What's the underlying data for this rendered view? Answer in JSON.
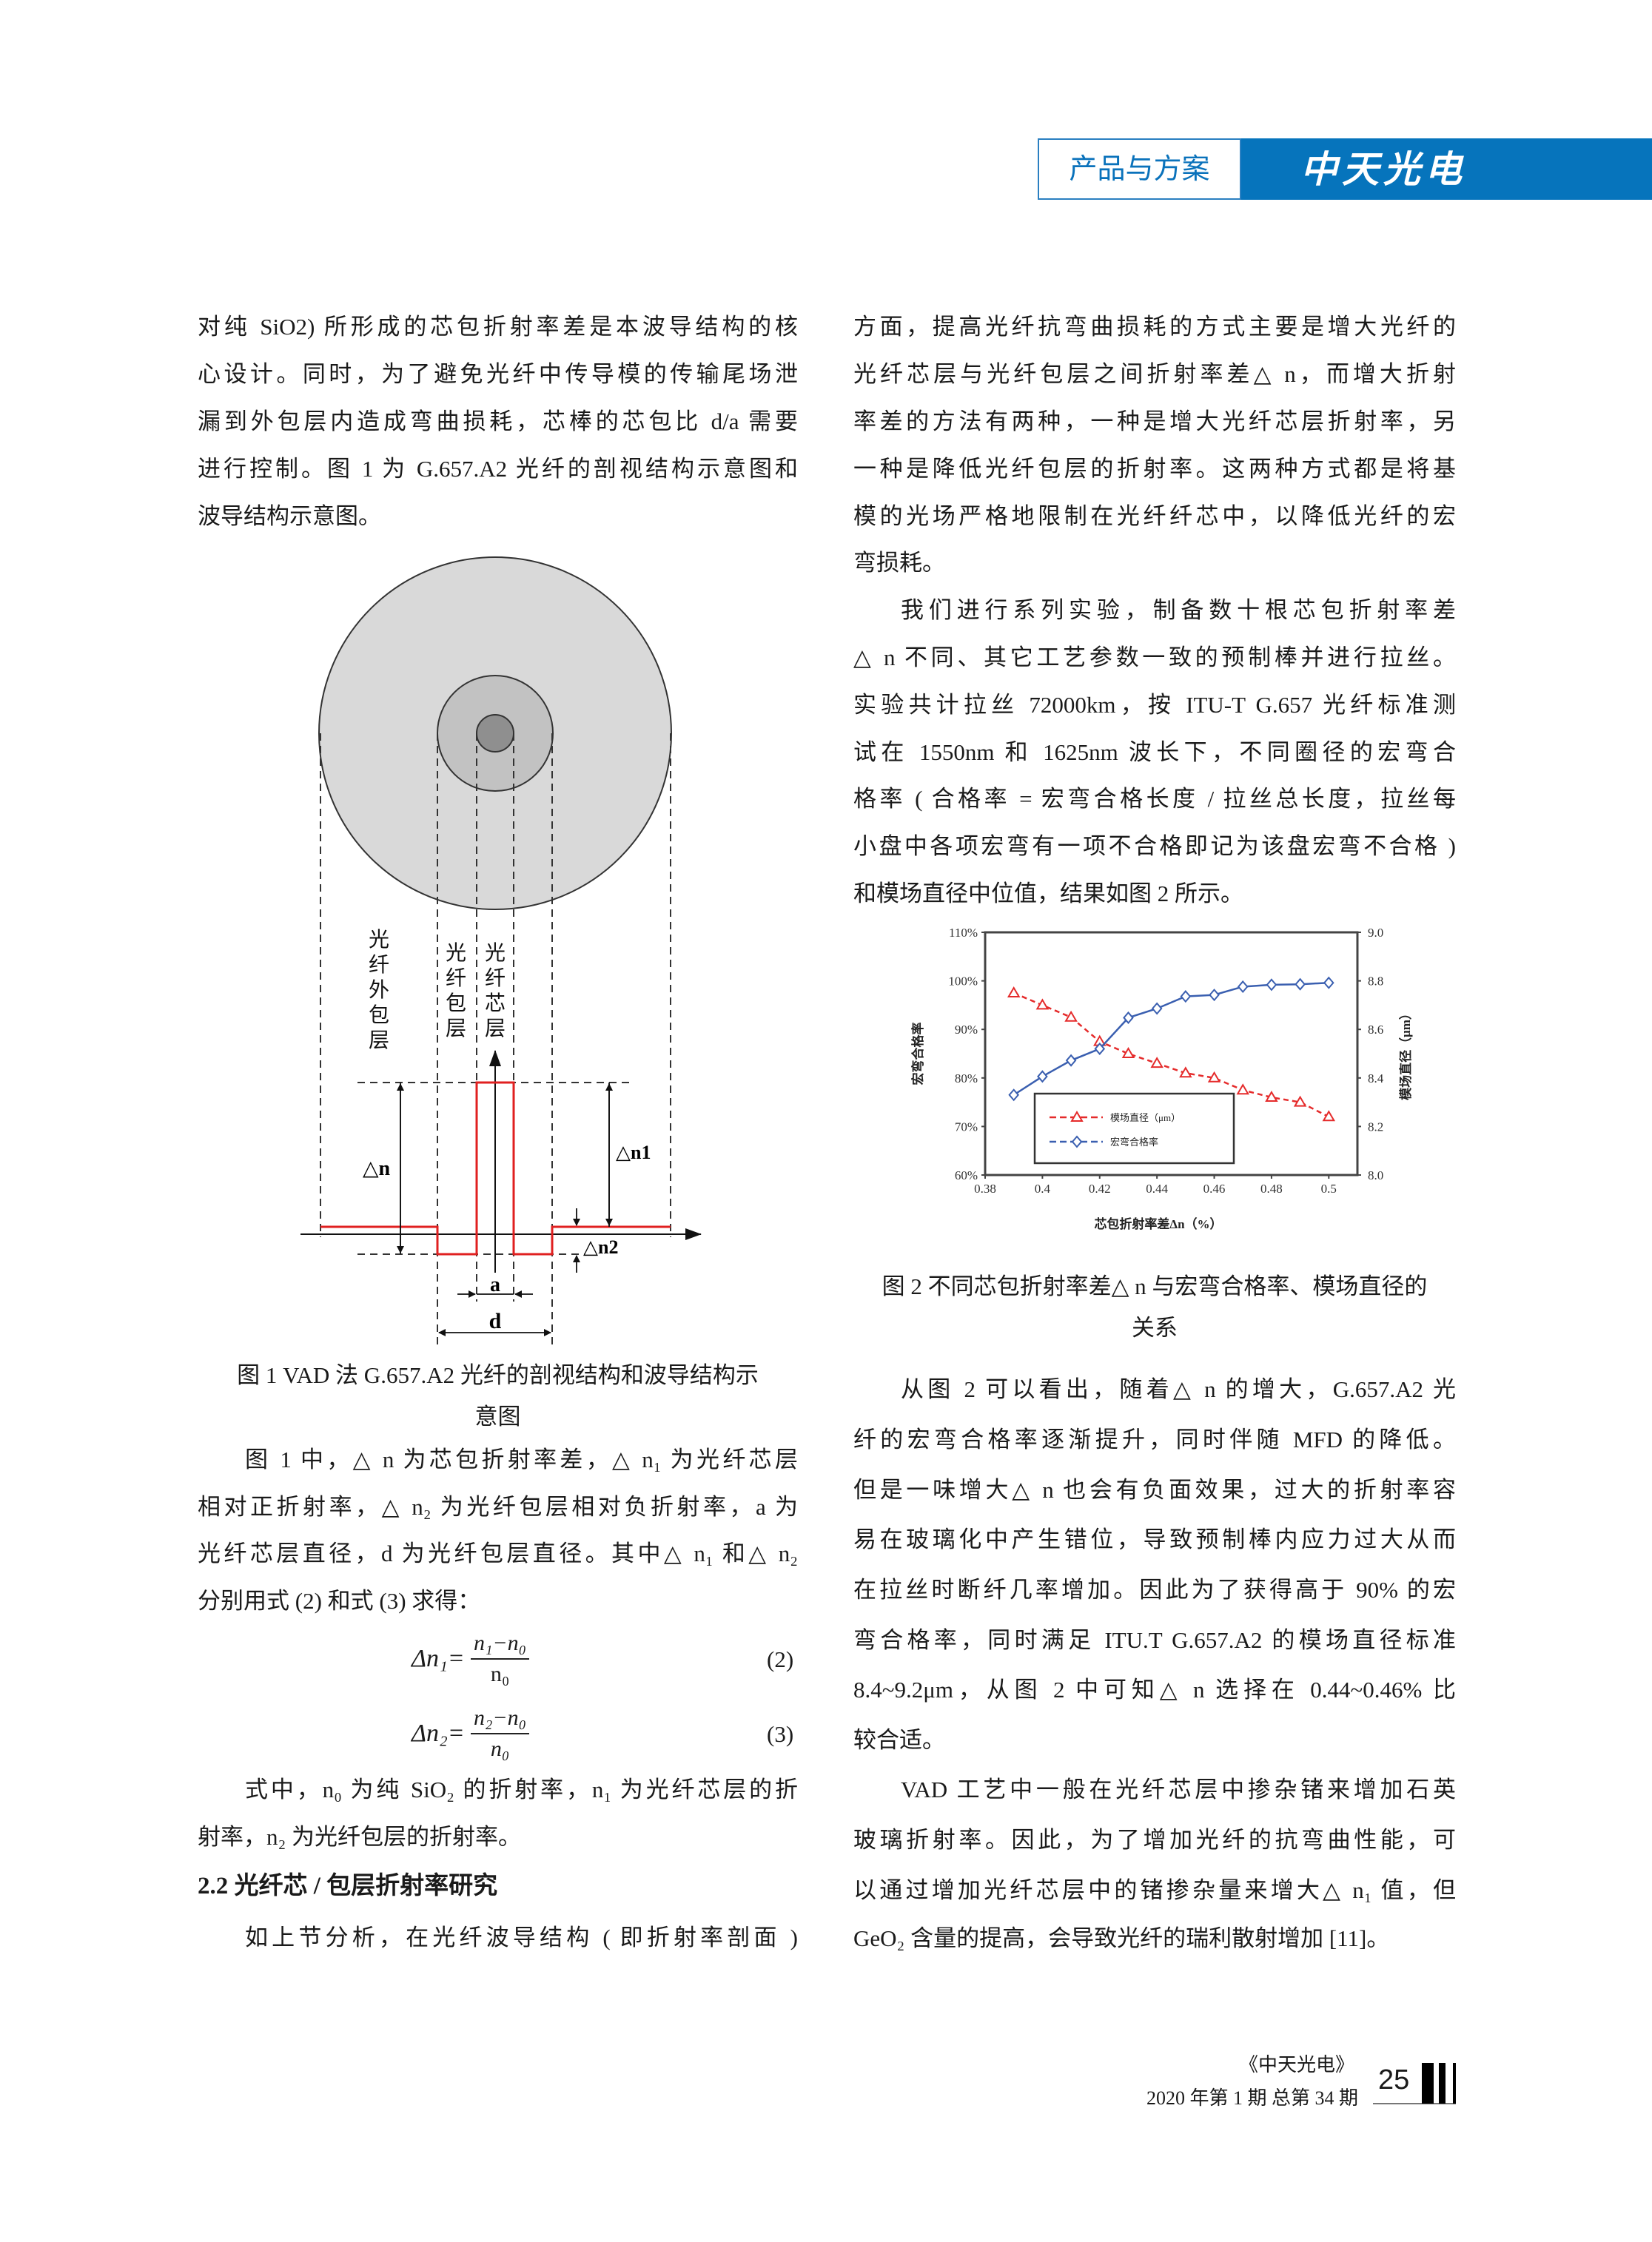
{
  "header": {
    "section_label": "产品与方案",
    "brand": "中天光电",
    "brand_color": "#0674bc"
  },
  "left_column": {
    "p1": [
      "对纯 SiO2) 所形成的芯包折射率差是本波导结构的核",
      "心设计。同时，为了避免光纤中传导模的传输尾场泄",
      "漏到外包层内造成弯曲损耗，芯棒的芯包比 d/a 需要",
      "进行控制。图 1 为 G.657.A2 光纤的剖视结构示意图和",
      "波导结构示意图。"
    ],
    "figure1": {
      "labels": {
        "outer_cladding": "光纤外包层",
        "cladding": "光纤包层",
        "core": "光纤芯层",
        "delta_n": "△n",
        "delta_n1": "△n1",
        "delta_n2": "△n2",
        "a": "a",
        "d": "d"
      },
      "caption": [
        "图 1 VAD 法 G.657.A2 光纤的剖视结构和波导结构示",
        "意图"
      ]
    },
    "p2": [
      "图 1 中，△ n 为芯包折射率差，△ n₁ 为光纤芯层",
      "相对正折射率，△ n₂ 为光纤包层相对负折射率，a 为",
      "光纤芯层直径，d 为光纤包层直径。其中△ n₁ 和△ n₂",
      "分别用式 (2) 和式 (3) 求得："
    ],
    "formulas": [
      {
        "lhs": "Δn₁=",
        "numerator": "n₁−n₀",
        "denominator": "n₀",
        "number": "(2)"
      },
      {
        "lhs": "Δn₂=",
        "numerator": "n₂−n₀",
        "denominator": "n₀",
        "number": "(3)"
      }
    ],
    "p3": [
      "式中，n₀ 为纯 SiO₂ 的折射率，n₁ 为光纤芯层的折",
      "射率，n₂ 为光纤包层的折射率。"
    ],
    "heading": "2.2 光纤芯 / 包层折射率研究",
    "p4": [
      "如上节分析，在光纤波导结构 ( 即折射率剖面 )"
    ]
  },
  "right_column": {
    "p1": [
      "方面，提高光纤抗弯曲损耗的方式主要是增大光纤的",
      "光纤芯层与光纤包层之间折射率差△ n，而增大折射",
      "率差的方法有两种，一种是增大光纤芯层折射率，另",
      "一种是降低光纤包层的折射率。这两种方式都是将基",
      "模的光场严格地限制在光纤纤芯中，以降低光纤的宏",
      "弯损耗。"
    ],
    "p2": [
      "我们进行系列实验，制备数十根芯包折射率差",
      "△ n 不同、其它工艺参数一致的预制棒并进行拉丝。",
      "实验共计拉丝 72000km，按 ITU-T G.657 光纤标准测",
      "试在 1550nm 和 1625nm 波长下，不同圈径的宏弯合",
      "格率 ( 合格率 = 宏弯合格长度 / 拉丝总长度，拉丝每",
      "小盘中各项宏弯有一项不合格即记为该盘宏弯不合格 )",
      "和模场直径中位值，结果如图 2 所示。"
    ],
    "figure2_caption": [
      "图 2 不同芯包折射率差△ n 与宏弯合格率、模场直径的",
      "关系"
    ],
    "p3": [
      "从图 2 可以看出，随着△ n 的增大，G.657.A2 光",
      "纤的宏弯合格率逐渐提升，同时伴随 MFD 的降低。",
      "但是一味增大△ n 也会有负面效果，过大的折射率容",
      "易在玻璃化中产生错位，导致预制棒内应力过大从而",
      "在拉丝时断纤几率增加。因此为了获得高于 90% 的宏",
      "弯合格率，同时满足 ITU.T G.657.A2 的模场直径标准",
      "8.4~9.2μm，从图 2 中可知△ n 选择在 0.44~0.46% 比",
      "较合适。"
    ],
    "p4": [
      "VAD 工艺中一般在光纤芯层中掺杂锗来增加石英",
      "玻璃折射率。因此，为了增加光纤的抗弯曲性能，可",
      "以通过增加光纤芯层中的锗掺杂量来增大△ n₁ 值，但",
      "GeO₂ 含量的提高，会导致光纤的瑞利散射增加 [11]。"
    ]
  },
  "chart_data": {
    "type": "line",
    "xlabel": "芯包折射率差Δn（%）",
    "ylabel_left": "宏弯合格率",
    "ylabel_right": "模场直径（μm）",
    "x": [
      0.39,
      0.4,
      0.41,
      0.42,
      0.43,
      0.44,
      0.45,
      0.46,
      0.47,
      0.48,
      0.49,
      0.5
    ],
    "xlim": [
      0.38,
      0.51
    ],
    "x_ticks": [
      "0.38",
      "0.4",
      "0.42",
      "0.44",
      "0.46",
      "0.48",
      "0.5"
    ],
    "x_tick_values": [
      0.38,
      0.4,
      0.42,
      0.44,
      0.46,
      0.48,
      0.5
    ],
    "ylim_left": [
      60,
      110
    ],
    "y_ticks_left": [
      "60%",
      "70%",
      "80%",
      "90%",
      "100%",
      "110%"
    ],
    "ylim_right": [
      8.0,
      9.0
    ],
    "y_ticks_right": [
      "8.0",
      "8.2",
      "8.4",
      "8.6",
      "8.8",
      "9.0"
    ],
    "grid": false,
    "legend_position": "bottom-left",
    "series": [
      {
        "name": "模场直径（μm）",
        "axis": "right",
        "color": "#e52b2b",
        "marker": "triangle",
        "dash": true,
        "values": [
          8.75,
          8.7,
          8.65,
          8.55,
          8.5,
          8.46,
          8.42,
          8.4,
          8.35,
          8.32,
          8.3,
          8.24
        ]
      },
      {
        "name": "宏弯合格率",
        "axis": "left",
        "color": "#3a5fb0",
        "marker": "diamond",
        "dash": false,
        "values": [
          76.5,
          80.3,
          83.6,
          86.0,
          92.4,
          94.3,
          96.8,
          97.1,
          98.8,
          99.2,
          99.3,
          99.6
        ]
      }
    ]
  },
  "footer": {
    "journal": "《中天光电》",
    "issue": "2020 年第 1 期 总第 34 期",
    "page_number": "25"
  }
}
